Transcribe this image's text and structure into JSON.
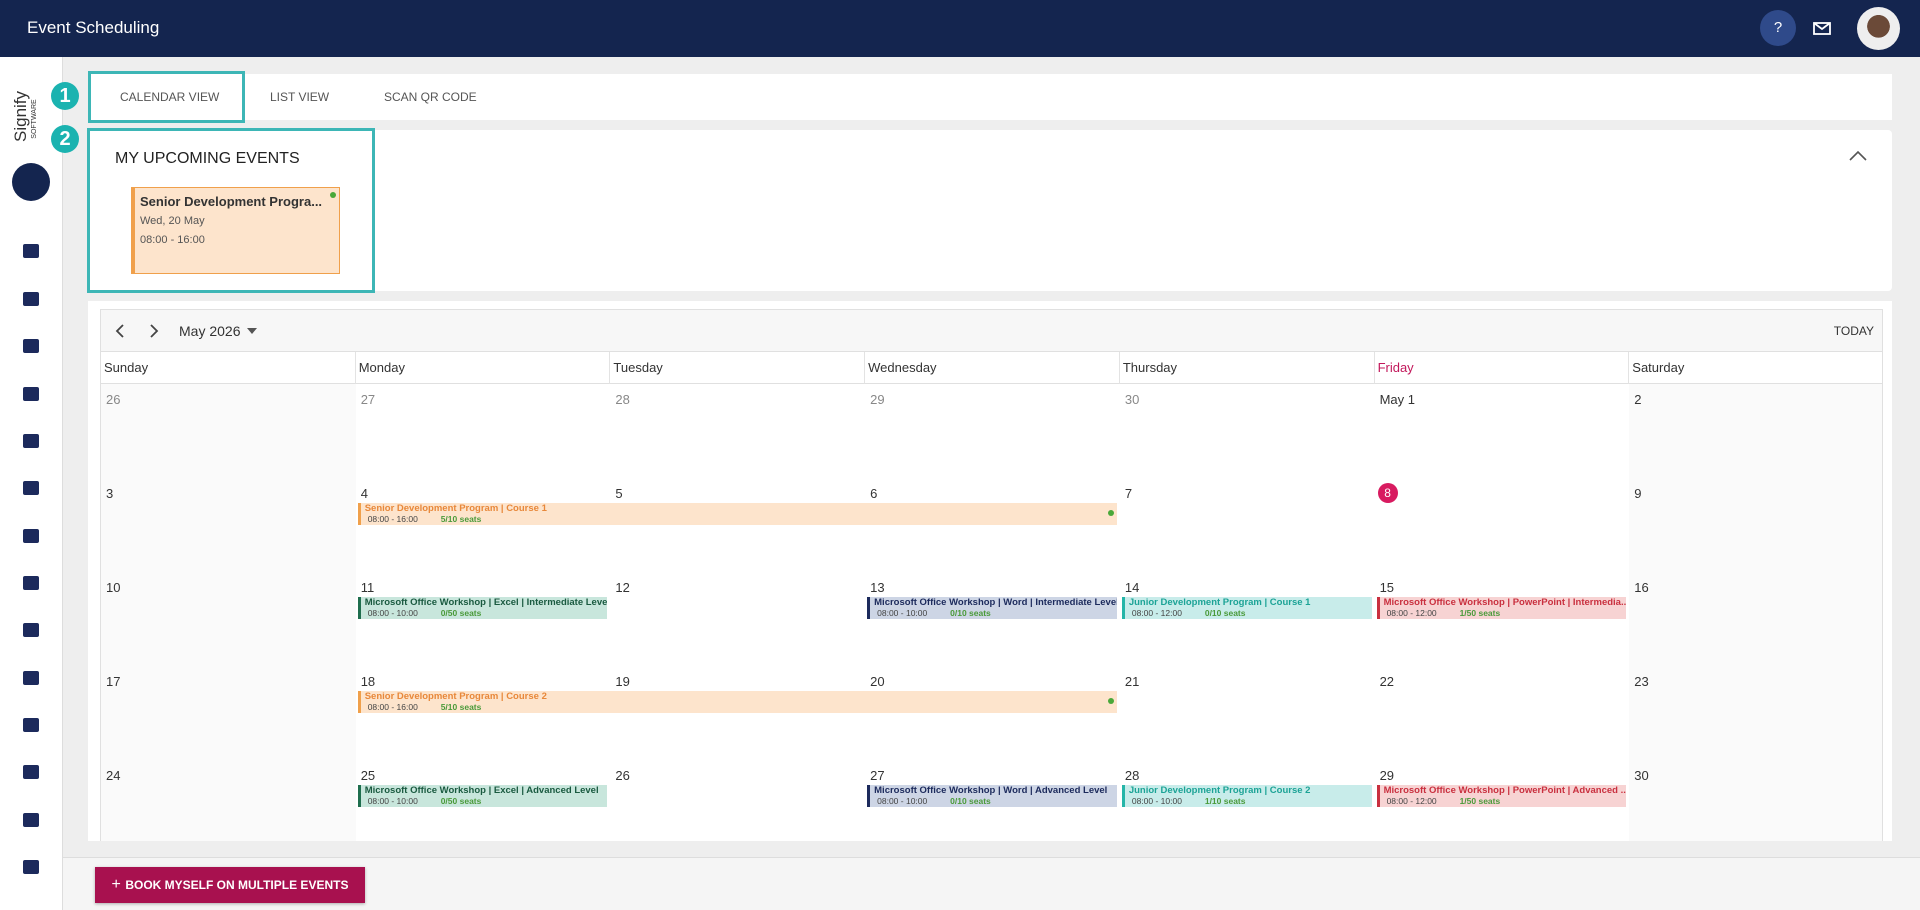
{
  "header": {
    "title": "Event Scheduling",
    "help": "?"
  },
  "logo": {
    "name": "Signify",
    "sub": "SOFTWARE"
  },
  "tabs": [
    "CALENDAR VIEW",
    "LIST VIEW",
    "SCAN QR CODE"
  ],
  "callouts": [
    "1",
    "2"
  ],
  "upcoming": {
    "title": "MY UPCOMING EVENTS",
    "events": [
      {
        "title": "Senior Development Progra...",
        "date": "Wed, 20 May",
        "time": "08:00 - 16:00"
      }
    ]
  },
  "calendar": {
    "month": "May 2026",
    "today_label": "TODAY",
    "weekdays": [
      {
        "name": "Sunday"
      },
      {
        "name": "Monday"
      },
      {
        "name": "Tuesday"
      },
      {
        "name": "Wednesday"
      },
      {
        "name": "Thursday"
      },
      {
        "name": "Friday",
        "current": true
      },
      {
        "name": "Saturday"
      }
    ],
    "weeks": [
      [
        {
          "day": "26",
          "muted": true
        },
        {
          "day": "27",
          "muted": true
        },
        {
          "day": "28",
          "muted": true
        },
        {
          "day": "29",
          "muted": true
        },
        {
          "day": "30",
          "muted": true
        },
        {
          "day": "May 1"
        },
        {
          "day": "2"
        }
      ],
      [
        {
          "day": "3"
        },
        {
          "day": "4",
          "events": [
            {
              "title": "Senior Development Program | Course 1",
              "time": "08:00 - 16:00",
              "seats": "5/10 seats",
              "span": 3,
              "dot": true,
              "color": "#f0a04b",
              "background": "#fde4cc",
              "text_color": "#e8883a"
            }
          ]
        },
        {
          "day": "5"
        },
        {
          "day": "6"
        },
        {
          "day": "7"
        },
        {
          "day": "8",
          "today": true
        },
        {
          "day": "9"
        }
      ],
      [
        {
          "day": "10"
        },
        {
          "day": "11",
          "events": [
            {
              "title": "Microsoft Office Workshop | Excel | Intermediate Level",
              "time": "08:00 - 10:00",
              "seats": "0/50 seats",
              "span": 1,
              "color": "#1f6e4e",
              "background": "#c8e6dc",
              "text_color": "#1a5a40"
            }
          ]
        },
        {
          "day": "12"
        },
        {
          "day": "13",
          "events": [
            {
              "title": "Microsoft Office Workshop | Word | Intermediate Level",
              "time": "08:00 - 10:00",
              "seats": "0/10 seats",
              "span": 1,
              "color": "#1c2a5c",
              "background": "#cdd5e5",
              "text_color": "#1c2a5c"
            }
          ]
        },
        {
          "day": "14",
          "events": [
            {
              "title": "Junior Development Program | Course 1",
              "time": "08:00 - 12:00",
              "seats": "0/10 seats",
              "span": 1,
              "color": "#25b5a8",
              "background": "#c8ecea",
              "text_color": "#1ca396"
            }
          ]
        },
        {
          "day": "15",
          "events": [
            {
              "title": "Microsoft Office Workshop | PowerPoint | Intermedia...",
              "time": "08:00 - 12:00",
              "seats": "1/50 seats",
              "span": 1,
              "color": "#c9303f",
              "background": "#f7d3d3",
              "text_color": "#c9303f"
            }
          ]
        },
        {
          "day": "16"
        }
      ],
      [
        {
          "day": "17"
        },
        {
          "day": "18",
          "events": [
            {
              "title": "Senior Development Program | Course 2",
              "time": "08:00 - 16:00",
              "seats": "5/10 seats",
              "span": 3,
              "dot": true,
              "color": "#f0a04b",
              "background": "#fde4cc",
              "text_color": "#e8883a"
            }
          ]
        },
        {
          "day": "19"
        },
        {
          "day": "20"
        },
        {
          "day": "21"
        },
        {
          "day": "22"
        },
        {
          "day": "23"
        }
      ],
      [
        {
          "day": "24"
        },
        {
          "day": "25",
          "events": [
            {
              "title": "Microsoft Office Workshop | Excel | Advanced Level",
              "time": "08:00 - 10:00",
              "seats": "0/50 seats",
              "span": 1,
              "color": "#1f6e4e",
              "background": "#c8e6dc",
              "text_color": "#1a5a40"
            }
          ]
        },
        {
          "day": "26"
        },
        {
          "day": "27",
          "events": [
            {
              "title": "Microsoft Office Workshop | Word | Advanced Level",
              "time": "08:00 - 10:00",
              "seats": "0/10 seats",
              "span": 1,
              "color": "#1c2a5c",
              "background": "#cdd5e5",
              "text_color": "#1c2a5c"
            }
          ]
        },
        {
          "day": "28",
          "events": [
            {
              "title": "Junior Development Program | Course 2",
              "time": "08:00 - 10:00",
              "seats": "1/10 seats",
              "span": 1,
              "color": "#25b5a8",
              "background": "#c8ecea",
              "text_color": "#1ca396"
            }
          ]
        },
        {
          "day": "29",
          "events": [
            {
              "title": "Microsoft Office Workshop | PowerPoint | Advanced ...",
              "time": "08:00 - 12:00",
              "seats": "1/50 seats",
              "span": 1,
              "color": "#c9303f",
              "background": "#f7d3d3",
              "text_color": "#c9303f"
            }
          ]
        },
        {
          "day": "30"
        }
      ]
    ]
  },
  "button": "BOOK MYSELF ON MULTIPLE EVENTS"
}
